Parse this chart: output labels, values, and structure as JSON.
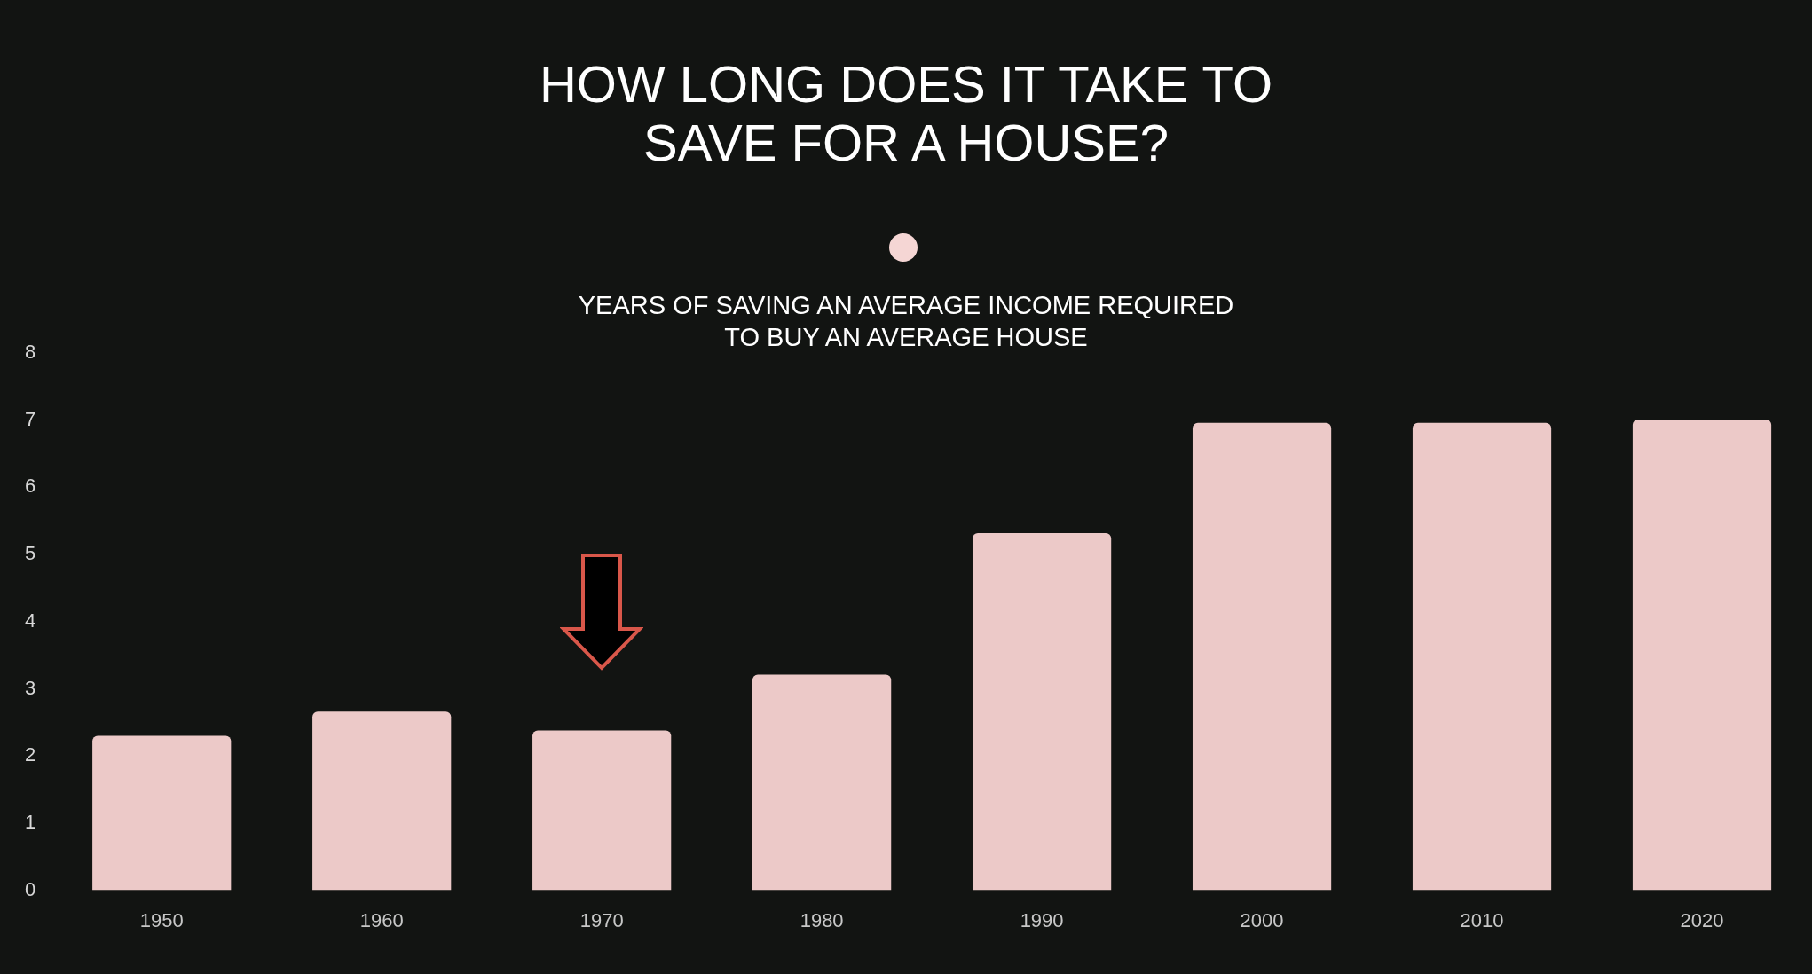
{
  "chart_data": {
    "type": "bar",
    "title": "HOW LONG DOES IT TAKE TO\nSAVE FOR A HOUSE?",
    "subtitle": "YEARS OF SAVING AN AVERAGE INCOME REQUIRED\nTO BUY AN AVERAGE HOUSE",
    "categories": [
      "1950",
      "1960",
      "1970",
      "1980",
      "1990",
      "2000",
      "2010",
      "2020"
    ],
    "values": [
      2.3,
      2.66,
      2.38,
      3.21,
      5.32,
      6.96,
      6.96,
      7.01
    ],
    "color": "#ecc9c8",
    "ylim": [
      0,
      8
    ],
    "yticks": [
      0,
      1,
      2,
      3,
      4,
      5,
      6,
      7,
      8
    ],
    "grid": false,
    "legend": false
  }
}
